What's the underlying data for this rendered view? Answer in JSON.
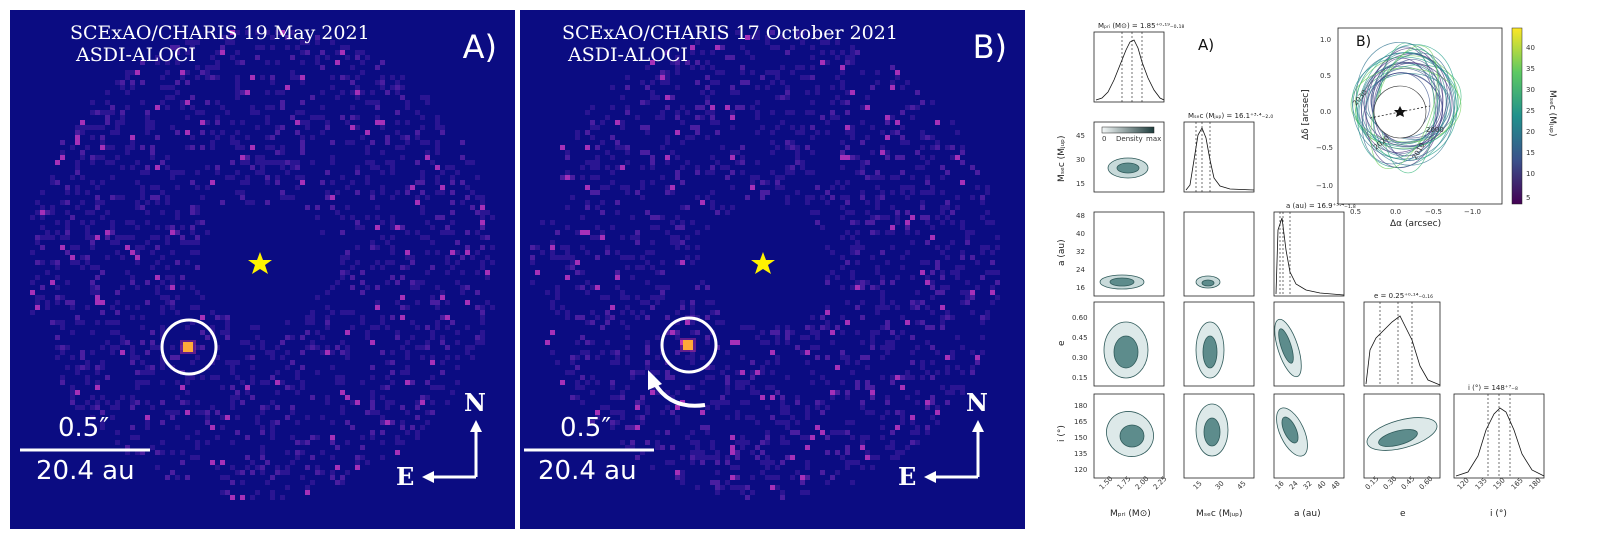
{
  "panel_a": {
    "title_line1": "SCExAO/CHARIS 19 May 2021",
    "title_line2": "ASDI-ALOCI",
    "label": "A)",
    "scale_arcsec": "0.5″",
    "scale_au": "20.4 au",
    "compass_n": "N",
    "compass_e": "E"
  },
  "panel_b": {
    "title_line1": "SCExAO/CHARIS 17 October 2021",
    "title_line2": "ASDI-ALOCI",
    "label": "B)",
    "scale_arcsec": "0.5″",
    "scale_au": "20.4 au",
    "compass_n": "N",
    "compass_e": "E"
  },
  "corner": {
    "label_a": "A)",
    "titles": {
      "mpri": "Mₚᵣᵢ (M⊙) = 1.85⁺⁰·¹⁹₋₀.₁₈",
      "msec": "Mₛₑᴄ (Mⱼᵤₚ) = 16.1⁺³·⁴₋₂.₀",
      "a": "a (au) = 16.9⁺³·⁴₋₁.₈",
      "e": "e = 0.25⁺⁰·¹⁴₋₀.₁₆",
      "i": "i (°) = 148⁺⁷₋₈"
    },
    "axis_labels": {
      "mpri": "Mₚᵣᵢ (M⊙)",
      "msec": "Mₛₑᴄ (Mⱼᵤₚ)",
      "a": "a (au)",
      "e": "e",
      "i": "i (°)"
    },
    "ticks": {
      "mpri": [
        "1.50",
        "1.75",
        "2.00",
        "2.25"
      ],
      "msec": [
        "15",
        "30",
        "45"
      ],
      "a": [
        "16",
        "24",
        "32",
        "40",
        "48"
      ],
      "e": [
        "0.15",
        "0.30",
        "0.45",
        "0.60"
      ],
      "i": [
        "120",
        "135",
        "150",
        "165",
        "180"
      ]
    },
    "density_legend": {
      "min": "0",
      "label": "Density",
      "max": "max"
    }
  },
  "orbit": {
    "label": "B)",
    "xlabel": "Δα (arcsec)",
    "ylabel": "Δδ [arcsec]",
    "xticks": [
      "0.5",
      "0.0",
      "−0.5",
      "−1.0"
    ],
    "yticks": [
      "1.0",
      "0.5",
      "0.0",
      "−0.5",
      "−1.0"
    ],
    "year_labels": [
      "2000",
      "2010",
      "2020",
      "2030"
    ],
    "colorbar_label": "Mₛₑᴄ (Mⱼᵤₚ)",
    "colorbar_ticks": [
      "40",
      "35",
      "30",
      "25",
      "20",
      "15",
      "10",
      "5"
    ]
  },
  "colors": {
    "background": "#0b0c82",
    "star": "#fff200",
    "contour": "#2f5a5a"
  }
}
